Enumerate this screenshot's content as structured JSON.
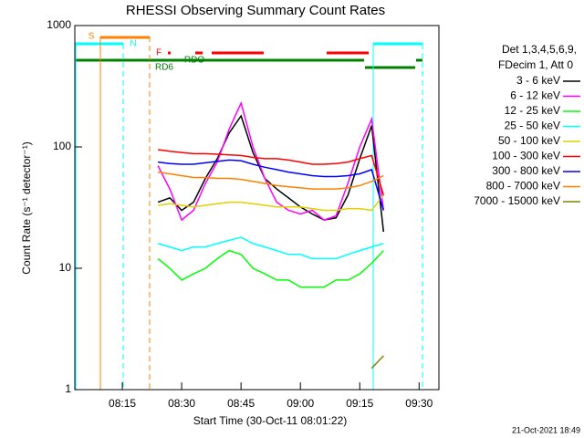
{
  "chart_data": {
    "type": "line",
    "title": "RHESSI Observing Summary Count Rates",
    "x_label": "Start Time (30-Oct-11 08:01:22)",
    "y_label": "Count Rate (s⁻¹ detector⁻¹)",
    "legend_header": [
      "Det 1,3,4,5,6,9,",
      "FDecim 1, Att 0"
    ],
    "timestamp": "21-Oct-2021 18:49",
    "annotations": [
      {
        "text": "S",
        "color": "#ff7f00"
      },
      {
        "text": "N",
        "color": "#00ffff"
      },
      {
        "text": "F",
        "color": "#ff0000"
      },
      {
        "text": "RDO",
        "color": "#008000"
      },
      {
        "text": "RD6",
        "color": "#008000"
      }
    ],
    "log_y": true,
    "xlim": [
      3,
      95
    ],
    "xticks": [
      {
        "value": 15,
        "label": "08:15"
      },
      {
        "value": 30,
        "label": "08:30"
      },
      {
        "value": 45,
        "label": "08:45"
      },
      {
        "value": 60,
        "label": "09:00"
      },
      {
        "value": 75,
        "label": "09:15"
      },
      {
        "value": 90,
        "label": "09:30"
      }
    ],
    "ylim": [
      1,
      1000
    ],
    "yticks": [
      1,
      10,
      100,
      1000
    ],
    "x": [
      24,
      27,
      30,
      33,
      36,
      39,
      42,
      45,
      48,
      51,
      54,
      57,
      60,
      63,
      66,
      69,
      72,
      75,
      78,
      81
    ],
    "series": [
      {
        "name": "3 - 6 keV",
        "color": "#000000",
        "values": [
          35,
          38,
          30,
          35,
          55,
          80,
          130,
          180,
          90,
          55,
          45,
          38,
          32,
          28,
          25,
          26,
          40,
          80,
          150,
          20
        ]
      },
      {
        "name": "6 - 12 keV",
        "color": "#ff00ff",
        "values": [
          70,
          45,
          25,
          30,
          50,
          75,
          140,
          230,
          100,
          55,
          35,
          30,
          28,
          30,
          25,
          27,
          50,
          100,
          170,
          30
        ]
      },
      {
        "name": "12 - 25 keV",
        "color": "#00ff00",
        "values": [
          12,
          10,
          8,
          9,
          10,
          12,
          14,
          13,
          10,
          9,
          8,
          8,
          7,
          7,
          7,
          8,
          8,
          9,
          11,
          14
        ]
      },
      {
        "name": "25 - 50 keV",
        "color": "#00ffff",
        "values": [
          16,
          15,
          14,
          15,
          15,
          16,
          17,
          18,
          16,
          15,
          14,
          13,
          13,
          12,
          12,
          12,
          13,
          14,
          15,
          16
        ]
      },
      {
        "name": "50 - 100 keV",
        "color": "#e0d000",
        "values": [
          33,
          34,
          33,
          32,
          33,
          34,
          35,
          35,
          34,
          33,
          32,
          32,
          32,
          31,
          30,
          30,
          31,
          31,
          30,
          40
        ]
      },
      {
        "name": "100 - 300 keV",
        "color": "#ff0000",
        "values": [
          95,
          92,
          90,
          88,
          88,
          87,
          86,
          85,
          82,
          80,
          80,
          78,
          75,
          72,
          72,
          73,
          75,
          80,
          85,
          40
        ]
      },
      {
        "name": "300 - 800 keV",
        "color": "#0000ff",
        "values": [
          75,
          73,
          72,
          72,
          74,
          76,
          78,
          77,
          72,
          68,
          65,
          62,
          60,
          58,
          57,
          57,
          58,
          60,
          65,
          30
        ]
      },
      {
        "name": "800 - 7000 keV",
        "color": "#ff8000",
        "values": [
          62,
          60,
          58,
          56,
          56,
          55,
          55,
          54,
          52,
          50,
          48,
          47,
          46,
          45,
          45,
          45,
          46,
          48,
          52,
          58
        ]
      },
      {
        "name": "7000 - 15000 keV",
        "color": "#808000",
        "values": [
          null,
          null,
          null,
          null,
          null,
          null,
          null,
          null,
          null,
          null,
          null,
          null,
          null,
          null,
          null,
          null,
          null,
          null,
          1.5,
          1.9
        ]
      }
    ]
  }
}
